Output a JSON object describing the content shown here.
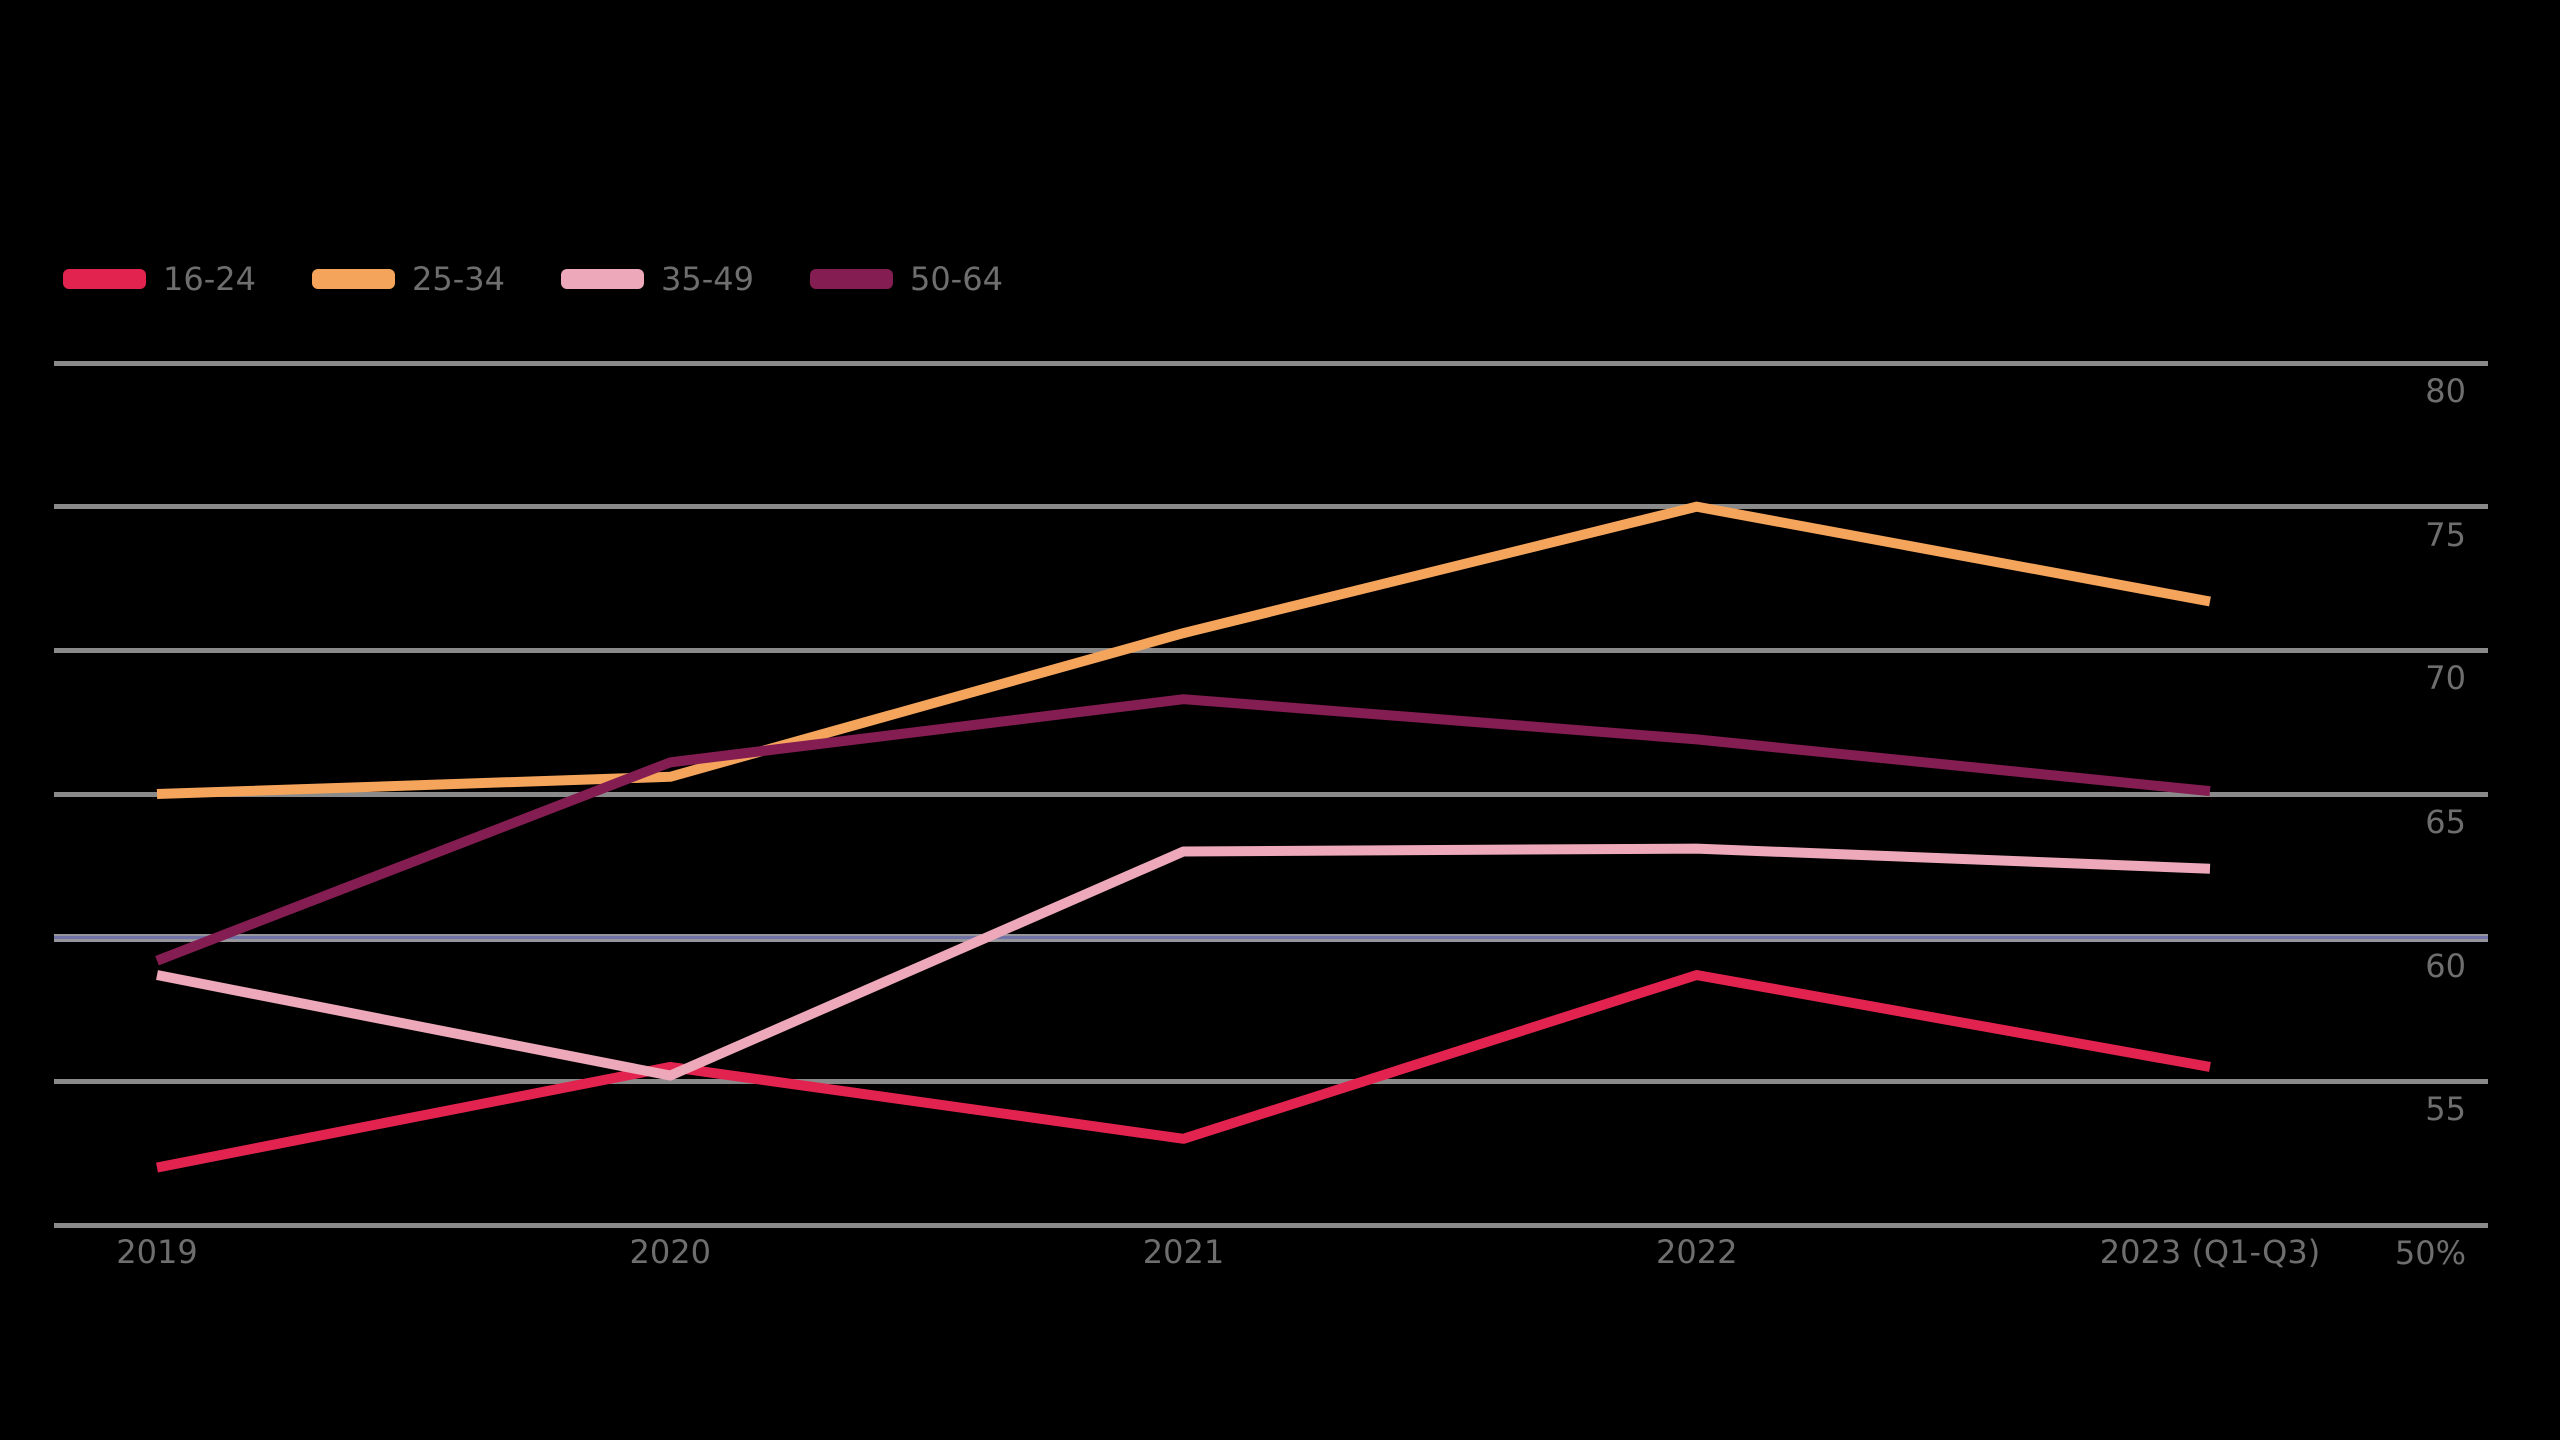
{
  "background_color": "#000000",
  "text_color": "#6e6e6e",
  "grid_color": "#8a8a8a",
  "emphasized_grid_core_color": "#7172a6",
  "legend": {
    "items": [
      {
        "label": "16-24",
        "color": "#e3234f"
      },
      {
        "label": "25-34",
        "color": "#f5a45c"
      },
      {
        "label": "35-49",
        "color": "#eda8ba"
      },
      {
        "label": "50-64",
        "color": "#831d52"
      }
    ]
  },
  "chart_data": {
    "type": "line",
    "title": "",
    "legend_position": "top-left",
    "grid": "horizontal",
    "x_categories": [
      "2019",
      "2020",
      "2021",
      "2022",
      "2023 (Q1-Q3)"
    ],
    "y_axis": {
      "side": "right",
      "top_value": 80,
      "bottom_value": 50,
      "ticks": [
        80,
        75,
        70,
        65,
        60,
        55,
        50
      ],
      "tick_labels": [
        "80",
        "75",
        "70",
        "65",
        "60",
        "55",
        "50%"
      ],
      "emphasized_value": 60
    },
    "series": [
      {
        "name": "16-24",
        "color": "#e3234f",
        "values": [
          52.0,
          55.5,
          53.0,
          58.7,
          55.5
        ]
      },
      {
        "name": "25-34",
        "color": "#f5a45c",
        "values": [
          65.0,
          65.6,
          70.6,
          75.0,
          71.7
        ]
      },
      {
        "name": "35-49",
        "color": "#eda8ba",
        "values": [
          58.7,
          55.2,
          63.0,
          63.1,
          62.4
        ]
      },
      {
        "name": "50-64",
        "color": "#831d52",
        "values": [
          59.2,
          66.1,
          68.3,
          66.9,
          65.1
        ]
      }
    ]
  }
}
